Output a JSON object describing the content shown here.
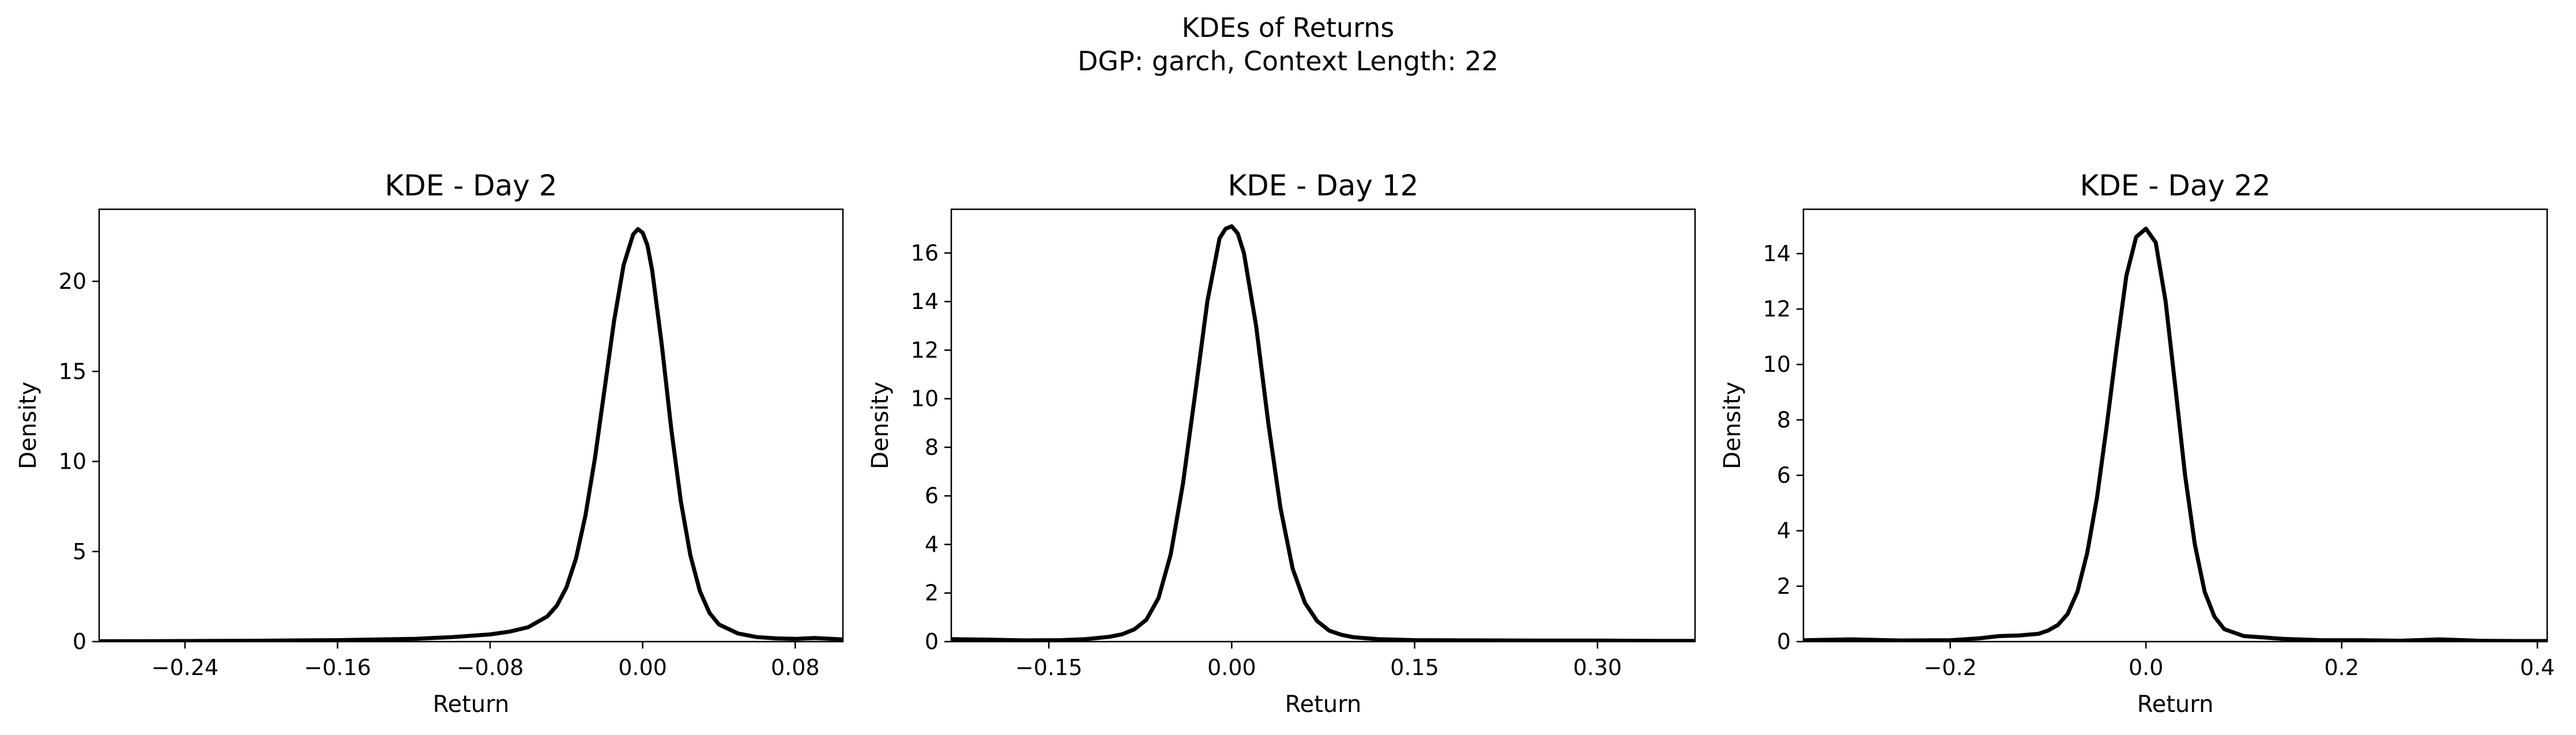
{
  "figure": {
    "suptitle_line1": "KDEs of Returns",
    "suptitle_line2": "DGP: garch, Context Length: 22"
  },
  "chart_data": [
    {
      "type": "line",
      "title": "KDE - Day 2",
      "xlabel": "Return",
      "ylabel": "Density",
      "xlim": [
        -0.285,
        0.105
      ],
      "ylim": [
        0,
        24
      ],
      "xticks": [
        -0.24,
        -0.16,
        -0.08,
        0.0,
        0.08
      ],
      "xtick_labels": [
        "−0.24",
        "−0.16",
        "−0.08",
        "0.00",
        "0.08"
      ],
      "yticks": [
        0,
        5,
        10,
        15,
        20
      ],
      "ytick_labels": [
        "0",
        "5",
        "10",
        "15",
        "20"
      ],
      "series": [
        {
          "color": "#000000",
          "x": [
            -0.285,
            -0.24,
            -0.2,
            -0.16,
            -0.12,
            -0.1,
            -0.08,
            -0.07,
            -0.06,
            -0.05,
            -0.045,
            -0.04,
            -0.035,
            -0.03,
            -0.025,
            -0.02,
            -0.015,
            -0.01,
            -0.005,
            -0.0025,
            0.0,
            0.0025,
            0.005,
            0.01,
            0.015,
            0.02,
            0.025,
            0.03,
            0.035,
            0.04,
            0.05,
            0.06,
            0.07,
            0.08,
            0.09,
            0.1,
            0.105
          ],
          "y": [
            0.02,
            0.03,
            0.05,
            0.08,
            0.15,
            0.25,
            0.4,
            0.55,
            0.8,
            1.4,
            2.0,
            3.0,
            4.6,
            7.0,
            10.2,
            14.0,
            17.8,
            20.9,
            22.6,
            22.9,
            22.7,
            22.0,
            20.6,
            16.5,
            11.8,
            7.8,
            4.8,
            2.8,
            1.6,
            0.95,
            0.45,
            0.25,
            0.18,
            0.15,
            0.2,
            0.15,
            0.12
          ]
        }
      ]
    },
    {
      "type": "line",
      "title": "KDE - Day 12",
      "xlabel": "Return",
      "ylabel": "Density",
      "xlim": [
        -0.23,
        0.38
      ],
      "ylim": [
        0,
        17.8
      ],
      "xticks": [
        -0.15,
        0.0,
        0.15,
        0.3
      ],
      "xtick_labels": [
        "−0.15",
        "0.00",
        "0.15",
        "0.30"
      ],
      "yticks": [
        0,
        2,
        4,
        6,
        8,
        10,
        12,
        14,
        16
      ],
      "ytick_labels": [
        "0",
        "2",
        "4",
        "6",
        "8",
        "10",
        "12",
        "14",
        "16"
      ],
      "series": [
        {
          "color": "#000000",
          "x": [
            -0.23,
            -0.2,
            -0.17,
            -0.14,
            -0.12,
            -0.1,
            -0.09,
            -0.08,
            -0.07,
            -0.06,
            -0.05,
            -0.04,
            -0.03,
            -0.02,
            -0.01,
            -0.005,
            0.0,
            0.005,
            0.01,
            0.02,
            0.03,
            0.04,
            0.05,
            0.06,
            0.07,
            0.08,
            0.09,
            0.1,
            0.12,
            0.15,
            0.2,
            0.25,
            0.3,
            0.35,
            0.38
          ],
          "y": [
            0.1,
            0.08,
            0.05,
            0.06,
            0.1,
            0.2,
            0.3,
            0.5,
            0.9,
            1.8,
            3.6,
            6.5,
            10.2,
            14.0,
            16.6,
            17.0,
            17.1,
            16.8,
            16.0,
            13.0,
            9.0,
            5.5,
            3.0,
            1.6,
            0.85,
            0.45,
            0.28,
            0.18,
            0.1,
            0.06,
            0.05,
            0.04,
            0.04,
            0.03,
            0.03
          ]
        }
      ]
    },
    {
      "type": "line",
      "title": "KDE - Day 22",
      "xlabel": "Return",
      "ylabel": "Density",
      "xlim": [
        -0.35,
        0.41
      ],
      "ylim": [
        0,
        15.6
      ],
      "xticks": [
        -0.2,
        0.0,
        0.2,
        0.4
      ],
      "xtick_labels": [
        "−0.2",
        "0.0",
        "0.2",
        "0.4"
      ],
      "yticks": [
        0,
        2,
        4,
        6,
        8,
        10,
        12,
        14
      ],
      "ytick_labels": [
        "0",
        "2",
        "4",
        "6",
        "8",
        "10",
        "12",
        "14"
      ],
      "series": [
        {
          "color": "#000000",
          "x": [
            -0.35,
            -0.3,
            -0.25,
            -0.2,
            -0.17,
            -0.15,
            -0.13,
            -0.11,
            -0.1,
            -0.09,
            -0.08,
            -0.07,
            -0.06,
            -0.05,
            -0.04,
            -0.03,
            -0.02,
            -0.01,
            0.0,
            0.01,
            0.02,
            0.03,
            0.04,
            0.05,
            0.06,
            0.07,
            0.08,
            0.1,
            0.12,
            0.14,
            0.18,
            0.22,
            0.26,
            0.3,
            0.34,
            0.38,
            0.41
          ],
          "y": [
            0.05,
            0.08,
            0.04,
            0.05,
            0.12,
            0.2,
            0.22,
            0.28,
            0.4,
            0.6,
            1.0,
            1.8,
            3.2,
            5.2,
            7.8,
            10.6,
            13.2,
            14.6,
            14.9,
            14.4,
            12.3,
            9.2,
            6.0,
            3.5,
            1.8,
            0.9,
            0.45,
            0.2,
            0.15,
            0.1,
            0.05,
            0.05,
            0.03,
            0.08,
            0.03,
            0.02,
            0.02
          ]
        }
      ]
    }
  ]
}
